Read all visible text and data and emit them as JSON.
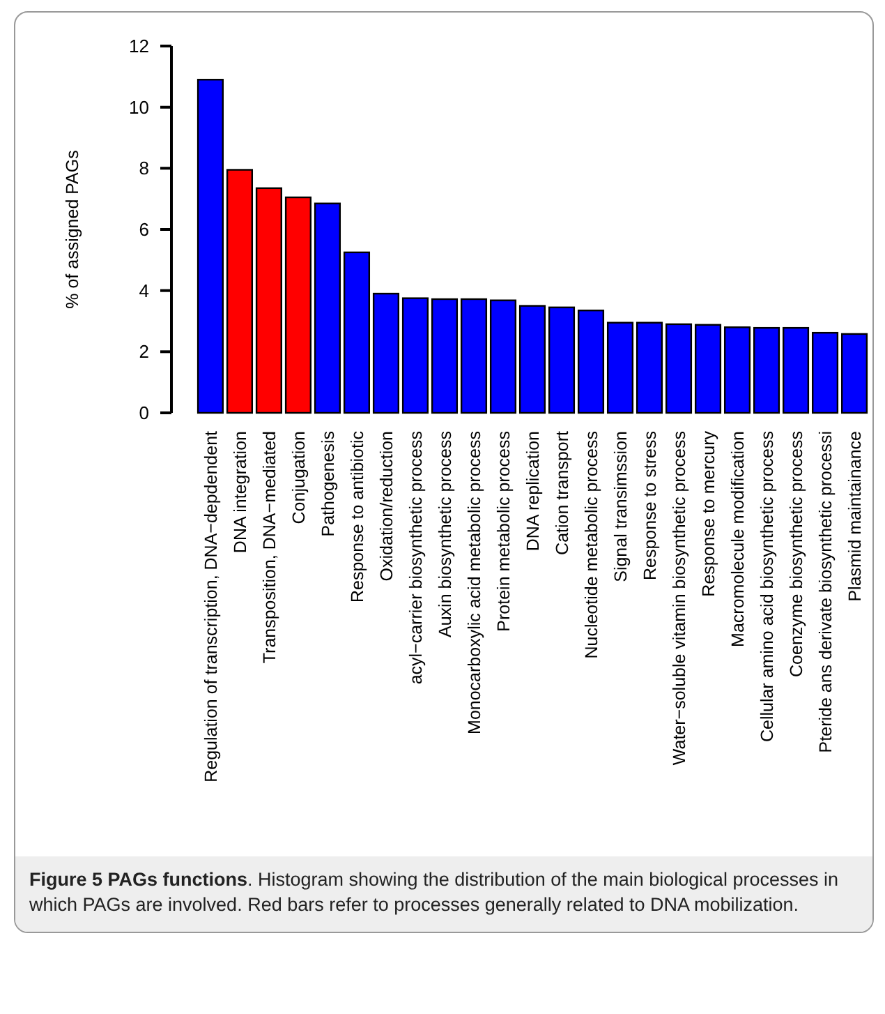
{
  "chart_data": {
    "type": "bar",
    "title": "Figure 5 PAGs functions",
    "ylabel": "% of assigned PAGs",
    "categories": [
      "Regulation of transcription, DNA−depdendent",
      "DNA integration",
      "Transposition, DNA−mediated",
      "Conjugation",
      "Pathogenesis",
      "Response to antibiotic",
      "Oxidation/reduction",
      "acyl−carrier biosynthetic process",
      "Auxin biosynthetic process",
      "Monocarboxylic acid metabolic process",
      "Protein metabolic process",
      "DNA replication",
      "Cation transport",
      "Nucleotide metabolic process",
      "Signal transimssion",
      "Response to stress",
      "Water−soluble vitamin biosynthetic process",
      "Response to mercury",
      "Macromolecule modification",
      "Cellular amino acid biosynthetic process",
      "Coenzyme biosynthetic process",
      "Pteride ans derivate biosynthetic processi",
      "Plasmid maintainance"
    ],
    "values": [
      10.9,
      7.95,
      7.35,
      7.05,
      6.85,
      5.25,
      3.9,
      3.75,
      3.72,
      3.72,
      3.68,
      3.5,
      3.45,
      3.35,
      2.95,
      2.95,
      2.9,
      2.88,
      2.8,
      2.78,
      2.78,
      2.62,
      2.58
    ],
    "colors": [
      "#0000ff",
      "#ff0000",
      "#ff0000",
      "#ff0000",
      "#0000ff",
      "#0000ff",
      "#0000ff",
      "#0000ff",
      "#0000ff",
      "#0000ff",
      "#0000ff",
      "#0000ff",
      "#0000ff",
      "#0000ff",
      "#0000ff",
      "#0000ff",
      "#0000ff",
      "#0000ff",
      "#0000ff",
      "#0000ff",
      "#0000ff",
      "#0000ff",
      "#0000ff"
    ],
    "ylim": [
      0,
      12
    ],
    "yticks": [
      0,
      2,
      4,
      6,
      8,
      10,
      12
    ],
    "grid": false,
    "annotations": [
      ". Histogram showing the distribution of the main biological processes in which PAGs are involved. Red bars refer to processes generally related to DNA mobilization."
    ]
  }
}
